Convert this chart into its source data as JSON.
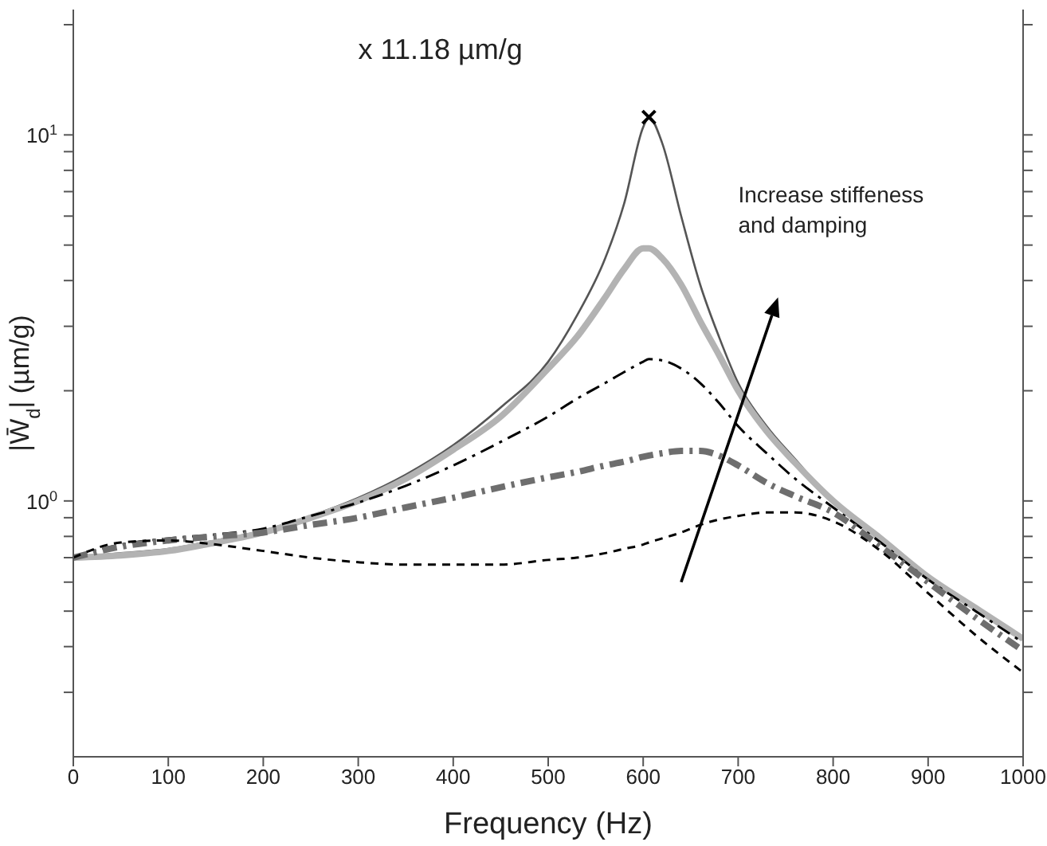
{
  "chart_data": {
    "type": "line",
    "xlabel": "Frequency (Hz)",
    "ylabel": "|W̄$_{d}$| (µm/g)",
    "x": [
      0,
      50,
      100,
      150,
      200,
      250,
      300,
      350,
      400,
      450,
      500,
      530,
      560,
      580,
      600,
      606,
      620,
      640,
      660,
      680,
      700,
      730,
      760,
      800,
      850,
      900,
      950,
      1000
    ],
    "series": [
      {
        "color": "#555555",
        "line_style": "solid",
        "values": [
          0.7,
          0.72,
          0.74,
          0.78,
          0.83,
          0.91,
          1.02,
          1.18,
          1.42,
          1.8,
          2.4,
          3.2,
          4.6,
          6.5,
          10.5,
          11.18,
          9.5,
          6.0,
          3.9,
          2.8,
          2.1,
          1.6,
          1.3,
          1.0,
          0.78,
          0.62,
          0.51,
          0.42
        ]
      },
      {
        "color": "#b3b3b3",
        "line_style": "solid",
        "values": [
          0.7,
          0.71,
          0.73,
          0.77,
          0.82,
          0.9,
          1.0,
          1.15,
          1.38,
          1.7,
          2.3,
          2.8,
          3.6,
          4.3,
          4.9,
          4.9,
          4.6,
          3.9,
          3.1,
          2.5,
          2.0,
          1.55,
          1.27,
          1.0,
          0.79,
          0.62,
          0.51,
          0.42
        ]
      },
      {
        "color": "#000000",
        "line_style": "dashdot",
        "values": [
          0.7,
          0.76,
          0.79,
          0.81,
          0.84,
          0.91,
          0.99,
          1.1,
          1.25,
          1.45,
          1.7,
          1.9,
          2.1,
          2.25,
          2.4,
          2.44,
          2.42,
          2.3,
          2.1,
          1.85,
          1.6,
          1.35,
          1.15,
          0.96,
          0.77,
          0.61,
          0.5,
          0.41
        ]
      },
      {
        "color": "#6e6e6e",
        "line_style": "dashdot",
        "values": [
          0.7,
          0.75,
          0.78,
          0.8,
          0.82,
          0.86,
          0.9,
          0.96,
          1.02,
          1.09,
          1.16,
          1.2,
          1.25,
          1.28,
          1.32,
          1.33,
          1.35,
          1.37,
          1.37,
          1.33,
          1.25,
          1.12,
          1.03,
          0.93,
          0.75,
          0.6,
          0.48,
          0.39
        ]
      },
      {
        "color": "#000000",
        "line_style": "dashed",
        "values": [
          0.7,
          0.77,
          0.78,
          0.76,
          0.73,
          0.7,
          0.68,
          0.67,
          0.67,
          0.67,
          0.69,
          0.7,
          0.72,
          0.74,
          0.76,
          0.77,
          0.79,
          0.82,
          0.86,
          0.89,
          0.91,
          0.93,
          0.93,
          0.88,
          0.73,
          0.56,
          0.43,
          0.34
        ]
      },
      {
        "type": "scatter",
        "color": "#000000",
        "marker": "cross",
        "x": [
          606
        ],
        "values": [
          11.18
        ]
      }
    ],
    "log": "y",
    "xlim": [
      0,
      1000
    ],
    "xticks": [
      0,
      100,
      200,
      300,
      400,
      500,
      600,
      700,
      800,
      900,
      1000
    ],
    "ylim": [
      0.2,
      22
    ],
    "yticks": [
      {
        "value": 0.3,
        "label": null
      },
      {
        "value": 0.4,
        "label": null
      },
      {
        "value": 0.5,
        "label": null
      },
      {
        "value": 0.6,
        "label": null
      },
      {
        "value": 0.7,
        "label": null
      },
      {
        "value": 0.8,
        "label": null
      },
      {
        "value": 0.9,
        "label": null
      },
      {
        "value": 1,
        "label": "10$^{0}$"
      },
      {
        "value": 2,
        "label": null
      },
      {
        "value": 3,
        "label": null
      },
      {
        "value": 4,
        "label": null
      },
      {
        "value": 5,
        "label": null
      },
      {
        "value": 6,
        "label": null
      },
      {
        "value": 7,
        "label": null
      },
      {
        "value": 8,
        "label": null
      },
      {
        "value": 9,
        "label": null
      },
      {
        "value": 10,
        "label": "10$^{1}$"
      },
      {
        "value": 20,
        "label": null
      }
    ],
    "grid": false,
    "legend": false,
    "annotations": [
      "x 11.18 µm/g",
      "Increase stiffeness\nand damping"
    ]
  }
}
